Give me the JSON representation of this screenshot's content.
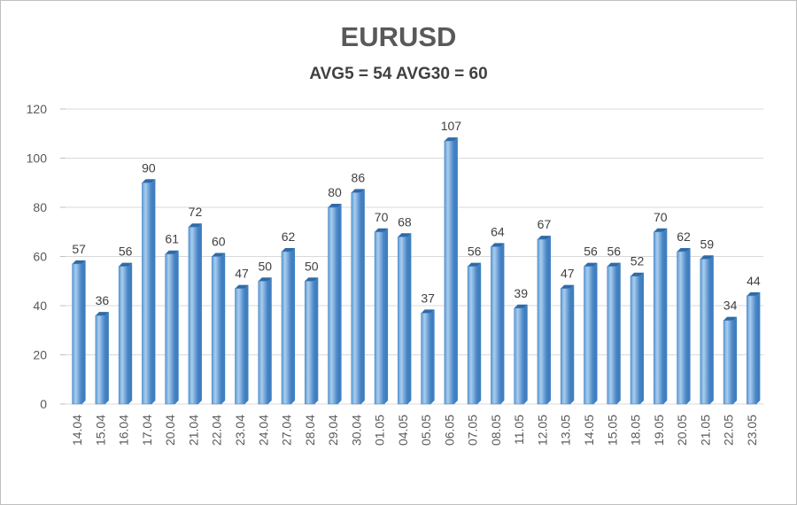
{
  "chart_data": {
    "type": "bar",
    "title": "EURUSD",
    "subtitle": "AVG5 = 54 AVG30 = 60",
    "xlabel": "",
    "ylabel": "",
    "ylim": [
      0,
      120
    ],
    "yticks": [
      0,
      20,
      40,
      60,
      80,
      100,
      120
    ],
    "grid": true,
    "legend": "none",
    "categories": [
      "14.04",
      "15.04",
      "16.04",
      "17.04",
      "20.04",
      "21.04",
      "22.04",
      "23.04",
      "24.04",
      "27.04",
      "28.04",
      "29.04",
      "30.04",
      "01.05",
      "04.05",
      "05.05",
      "06.05",
      "07.05",
      "08.05",
      "11.05",
      "12.05",
      "13.05",
      "14.05",
      "15.05",
      "18.05",
      "19.05",
      "20.05",
      "21.05",
      "22.05",
      "23.05"
    ],
    "values": [
      57,
      36,
      56,
      90,
      61,
      72,
      60,
      47,
      50,
      62,
      50,
      80,
      86,
      70,
      68,
      37,
      107,
      56,
      64,
      39,
      67,
      47,
      56,
      56,
      52,
      70,
      62,
      59,
      34,
      44
    ],
    "colors": {
      "bar_light": "#9dc3e6",
      "bar_dark": "#3f7fc0",
      "bar_top": "#2e6aa8",
      "grid": "#d9d9d9"
    }
  }
}
